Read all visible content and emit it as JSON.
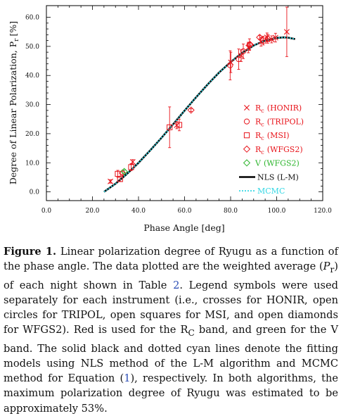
{
  "chart_data": {
    "type": "scatter",
    "xlabel": "Phase Angle [deg]",
    "ylabel": "Degree of Linear Polarization, P",
    "ylabel_sub": "r",
    "ylabel_unit": "[%]",
    "xlim": [
      0,
      120
    ],
    "ylim": [
      -3,
      64
    ],
    "xticks": [
      "0.0",
      "20.0",
      "40.0",
      "60.0",
      "80.0",
      "100.0",
      "120.0"
    ],
    "yticks": [
      "0.0",
      "10.0",
      "20.0",
      "30.0",
      "40.0",
      "50.0",
      "60.0"
    ],
    "legend_position": "right",
    "series": [
      {
        "name": "Rc (HONIR)",
        "label_main": "R",
        "label_sub": "c",
        "label_rest": "(HONIR)",
        "marker": "x",
        "color": "#e8131a",
        "points": [
          {
            "x": 27.8,
            "y": 3.6,
            "err": 0.6
          },
          {
            "x": 37.5,
            "y": 10.3,
            "err": 0.8
          },
          {
            "x": 56.6,
            "y": 22.9,
            "err": 1.2
          },
          {
            "x": 80.1,
            "y": 44.5,
            "err": 3.5
          },
          {
            "x": 84.6,
            "y": 46.8,
            "err": 2.0
          },
          {
            "x": 87.7,
            "y": 49.6,
            "err": 1.8
          },
          {
            "x": 93.2,
            "y": 51.6,
            "err": 1.5
          },
          {
            "x": 95.8,
            "y": 53.1,
            "err": 1.5
          },
          {
            "x": 97.8,
            "y": 52.4,
            "err": 1.2
          },
          {
            "x": 99.5,
            "y": 53.0,
            "err": 1.5
          },
          {
            "x": 104.4,
            "y": 55.0,
            "err": 8.5
          }
        ]
      },
      {
        "name": "Rc (TRIPOL)",
        "label_main": "R",
        "label_sub": "c",
        "label_rest": "(TRIPOL)",
        "marker": "circle",
        "color": "#e8131a",
        "points": [
          {
            "x": 79.8,
            "y": 43.5,
            "err": 5.0
          },
          {
            "x": 83.5,
            "y": 45.6,
            "err": 3.5
          },
          {
            "x": 85.5,
            "y": 48.3,
            "err": 2.5
          },
          {
            "x": 88.2,
            "y": 50.6,
            "err": 2.0
          },
          {
            "x": 96.1,
            "y": 52.6,
            "err": 1.5
          }
        ]
      },
      {
        "name": "Rc (MSI)",
        "label_main": "R",
        "label_sub": "c",
        "label_rest": "(MSI)",
        "marker": "square",
        "color": "#e8131a",
        "points": [
          {
            "x": 31.0,
            "y": 6.2,
            "err": 1.2
          },
          {
            "x": 32.0,
            "y": 4.4,
            "err": 0.8
          },
          {
            "x": 36.8,
            "y": 8.5,
            "err": 1.2
          },
          {
            "x": 53.5,
            "y": 22.2,
            "err": 7.0
          },
          {
            "x": 57.7,
            "y": 23.0,
            "err": 2.0
          },
          {
            "x": 94.2,
            "y": 52.0,
            "err": 1.5
          }
        ]
      },
      {
        "name": "Rc (WFGS2)",
        "label_main": "R",
        "label_sub": "c",
        "label_rest": "(WFGS2)",
        "marker": "diamond",
        "color": "#e8131a",
        "points": [
          {
            "x": 33.0,
            "y": 6.5,
            "err": 0.6
          },
          {
            "x": 62.8,
            "y": 28.1,
            "err": 0.5
          },
          {
            "x": 88.5,
            "y": 50.6,
            "err": 0.6
          },
          {
            "x": 92.6,
            "y": 53.1,
            "err": 0.6
          }
        ]
      },
      {
        "name": "V (WFGS2)",
        "label_main": "V",
        "label_sub": "",
        "label_rest": "(WFGS2)",
        "marker": "diamond",
        "color": "#2db52d",
        "points": [
          {
            "x": 33.8,
            "y": 7.0,
            "err": 0.5
          }
        ]
      }
    ],
    "models": [
      {
        "name": "NLS (L-M)",
        "style": "solid",
        "color": "#000000",
        "x": [
          25.0,
          30.0,
          35.0,
          40.0,
          45.0,
          50.0,
          55.0,
          60.0,
          65.0,
          70.0,
          75.0,
          80.0,
          85.0,
          90.0,
          95.0,
          100.0,
          103.0,
          105.0,
          108.0
        ],
        "y": [
          0.0,
          2.8,
          6.2,
          10.0,
          14.2,
          18.6,
          23.2,
          27.9,
          32.5,
          36.9,
          41.0,
          44.6,
          47.8,
          50.3,
          52.0,
          52.9,
          53.1,
          53.0,
          52.5
        ]
      },
      {
        "name": "MCMC",
        "style": "dotted",
        "color": "#33d7e4",
        "x": [
          25.0,
          30.0,
          35.0,
          40.0,
          45.0,
          50.0,
          55.0,
          60.0,
          65.0,
          70.0,
          75.0,
          80.0,
          85.0,
          90.0,
          95.0,
          100.0,
          103.0,
          105.0,
          108.0
        ],
        "y": [
          0.0,
          2.8,
          6.2,
          10.0,
          14.2,
          18.6,
          23.2,
          27.9,
          32.5,
          36.9,
          41.0,
          44.6,
          47.8,
          50.3,
          52.0,
          52.9,
          53.1,
          53.0,
          52.5
        ]
      }
    ]
  },
  "caption": {
    "label": "Figure 1.",
    "part1": " Linear polarization degree of Ryugu as a function of the phase angle. The data plotted are the weighted average (",
    "math": "P",
    "math_sub": "r",
    "part2": ") of each night shown in Table ",
    "table_ref": "2",
    "part3": ". Legend symbols were used separately for each instrument (i.e., crosses for HONIR, open circles for TRIPOL, open squares for MSI, and open diamonds for WFGS2). Red is used for the R",
    "band_sub": "C",
    "part4": " band, and green for the V band. The solid black and dotted cyan lines denote the fitting models using NLS method of the L-M algorithm and MCMC method for Equation (",
    "eq_ref": "1",
    "part5": "), respectively. In both algorithms, the maximum polarization degree of Ryugu was estimated to be approximately 53%."
  }
}
